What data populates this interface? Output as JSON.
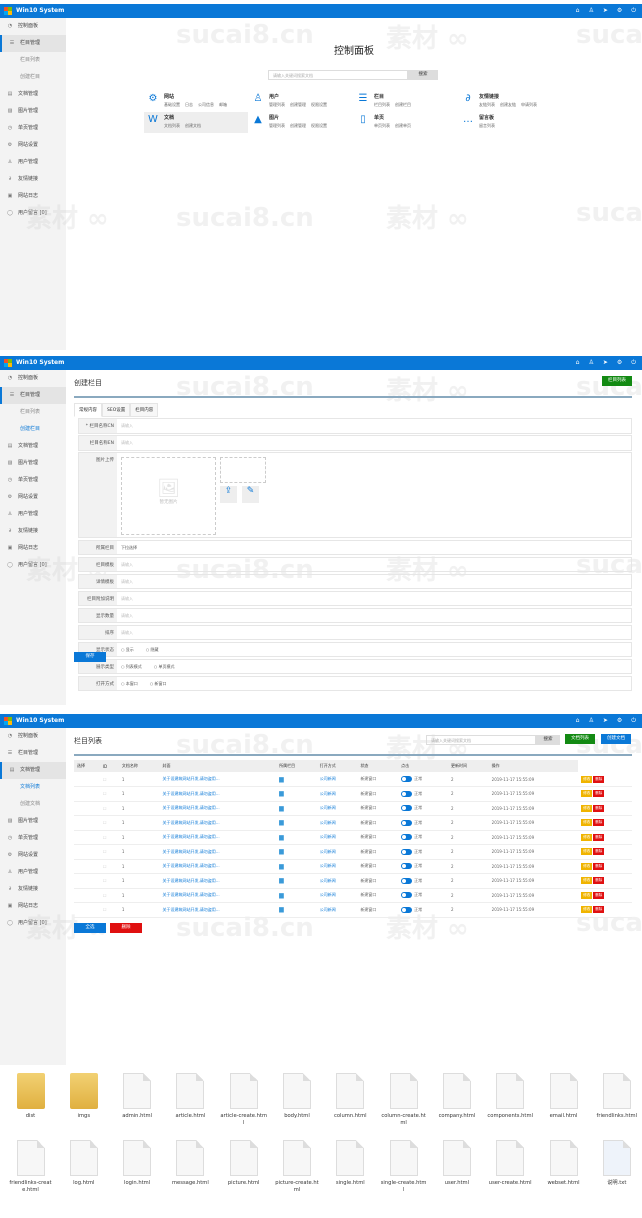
{
  "app": {
    "title": "Win10 System",
    "header_icons": [
      "home-icon",
      "user-icon",
      "send-icon",
      "gear-icon",
      "power-icon"
    ],
    "accent": "#0a78d7"
  },
  "sidebar": [
    {
      "label": "控制面板",
      "icon": "◔"
    },
    {
      "label": "栏目管理",
      "icon": "☰",
      "children": [
        "栏目列表",
        "创建栏目"
      ]
    },
    {
      "label": "文档管理",
      "icon": "▤",
      "children": [
        "文档列表",
        "创建文档"
      ]
    },
    {
      "label": "图片管理",
      "icon": "▨"
    },
    {
      "label": "单页管理",
      "icon": "◷"
    },
    {
      "label": "网站设置",
      "icon": "⚙"
    },
    {
      "label": "用户管理",
      "icon": "♙"
    },
    {
      "label": "友情链接",
      "icon": "∂"
    },
    {
      "label": "网站日志",
      "icon": "▣"
    },
    {
      "label": "用户留言 [0]",
      "icon": "◯"
    }
  ],
  "dashboard": {
    "title": "控制面板",
    "search_placeholder": "请输入关键词搜索文档",
    "search_button": "搜索",
    "cards": [
      {
        "title": "网站",
        "icon": "⚙",
        "links": [
          "基础设置",
          "日志",
          "公司信息",
          "邮箱"
        ]
      },
      {
        "title": "用户",
        "icon": "♙",
        "links": [
          "管理列表",
          "创建管理",
          "权限设置"
        ]
      },
      {
        "title": "栏目",
        "icon": "☰",
        "links": [
          "栏目列表",
          "创建栏目"
        ]
      },
      {
        "title": "友情链接",
        "icon": "∂",
        "links": [
          "友链列表",
          "创建友链",
          "申请列表"
        ]
      },
      {
        "title": "文档",
        "icon": "W",
        "links": [
          "文档列表",
          "创建文档"
        ]
      },
      {
        "title": "图片",
        "icon": "▲",
        "links": [
          "管理列表",
          "创建管理",
          "权限设置"
        ]
      },
      {
        "title": "单页",
        "icon": "▯",
        "links": [
          "单页列表",
          "创建单页"
        ]
      },
      {
        "title": "留言板",
        "icon": "…",
        "links": [
          "留言列表"
        ]
      }
    ]
  },
  "create_column": {
    "title": "创建栏目",
    "top_button": "栏目列表",
    "tabs": [
      "常规内容",
      "SEO设置",
      "栏目内容"
    ],
    "fields": [
      {
        "label": "* 栏目名称CN",
        "placeholder": "请输入"
      },
      {
        "label": "栏目名称EN",
        "placeholder": "请输入"
      },
      {
        "label": "图片上传",
        "placeholder": "暂无图片"
      },
      {
        "label": "所属栏目",
        "value": "下拉选择"
      },
      {
        "label": "栏目模板",
        "placeholder": "请输入"
      },
      {
        "label": "详情模板",
        "placeholder": "请输入"
      },
      {
        "label": "栏目附加说明",
        "placeholder": "请输入"
      },
      {
        "label": "显示数量",
        "placeholder": "请输入"
      },
      {
        "label": "排序",
        "placeholder": "请输入"
      },
      {
        "label": "显示状态",
        "options": [
          "显示",
          "隐藏"
        ]
      },
      {
        "label": "展示类型",
        "options": [
          "列表模式",
          "单页模式"
        ]
      },
      {
        "label": "打开方式",
        "options": [
          "本窗口",
          "新窗口"
        ]
      }
    ],
    "save_button": "保存"
  },
  "doc_list": {
    "title": "栏目列表",
    "search_placeholder": "请输入关键词搜索文档",
    "search_button": "搜索",
    "list_button": "文档列表",
    "create_button": "创建文档",
    "columns": [
      "选择",
      "ID",
      "文档名称",
      "封面",
      "所属栏目",
      "打开方式",
      "状态",
      "点击",
      "更新时间",
      "操作"
    ],
    "rows": [
      {
        "id": "1",
        "name": "关于设建筑网站开发,请勿盗用...",
        "category": "公司新闻",
        "open": "新建窗口",
        "status": "正常",
        "clicks": "2",
        "updated": "2019-11-17 15:55:09"
      },
      {
        "id": "1",
        "name": "关于设建筑网站开发,请勿盗用...",
        "category": "公司新闻",
        "open": "新建窗口",
        "status": "正常",
        "clicks": "2",
        "updated": "2019-11-17 15:55:09"
      },
      {
        "id": "1",
        "name": "关于设建筑网站开发,请勿盗用...",
        "category": "公司新闻",
        "open": "新建窗口",
        "status": "正常",
        "clicks": "2",
        "updated": "2019-11-17 15:55:09"
      },
      {
        "id": "1",
        "name": "关于设建筑网站开发,请勿盗用...",
        "category": "公司新闻",
        "open": "新建窗口",
        "status": "正常",
        "clicks": "2",
        "updated": "2019-11-17 15:55:09"
      },
      {
        "id": "1",
        "name": "关于设建筑网站开发,请勿盗用...",
        "category": "公司新闻",
        "open": "新建窗口",
        "status": "正常",
        "clicks": "2",
        "updated": "2019-11-17 15:55:09"
      },
      {
        "id": "1",
        "name": "关于设建筑网站开发,请勿盗用...",
        "category": "公司新闻",
        "open": "新建窗口",
        "status": "正常",
        "clicks": "2",
        "updated": "2019-11-17 15:55:09"
      },
      {
        "id": "1",
        "name": "关于设建筑网站开发,请勿盗用...",
        "category": "公司新闻",
        "open": "新建窗口",
        "status": "正常",
        "clicks": "2",
        "updated": "2019-11-17 15:55:09"
      },
      {
        "id": "1",
        "name": "关于设建筑网站开发,请勿盗用...",
        "category": "公司新闻",
        "open": "新建窗口",
        "status": "正常",
        "clicks": "2",
        "updated": "2019-11-17 15:55:09"
      },
      {
        "id": "1",
        "name": "关于设建筑网站开发,请勿盗用...",
        "category": "公司新闻",
        "open": "新建窗口",
        "status": "正常",
        "clicks": "2",
        "updated": "2019-11-17 15:55:09"
      },
      {
        "id": "1",
        "name": "关于设建筑网站开发,请勿盗用...",
        "category": "公司新闻",
        "open": "新建窗口",
        "status": "正常",
        "clicks": "2",
        "updated": "2019-11-17 15:55:09"
      }
    ],
    "edit_label": "修改",
    "delete_label": "删除",
    "select_all_button": "全选",
    "bulk_delete_button": "删除"
  },
  "files": [
    {
      "name": "dist",
      "type": "folder"
    },
    {
      "name": "imgs",
      "type": "folder"
    },
    {
      "name": "admin.html"
    },
    {
      "name": "article.html"
    },
    {
      "name": "article-create.html"
    },
    {
      "name": "body.html"
    },
    {
      "name": "column.html"
    },
    {
      "name": "column-create.html"
    },
    {
      "name": "company.html"
    },
    {
      "name": "components.html"
    },
    {
      "name": "email.html"
    },
    {
      "name": "friendlinks.html"
    },
    {
      "name": "friendlinks-create.html"
    },
    {
      "name": "log.html"
    },
    {
      "name": "login.html"
    },
    {
      "name": "message.html"
    },
    {
      "name": "picture.html"
    },
    {
      "name": "picture-create.html"
    },
    {
      "name": "single.html"
    },
    {
      "name": "single-create.html"
    },
    {
      "name": "user.html"
    },
    {
      "name": "user-create.html"
    },
    {
      "name": "webset.html"
    },
    {
      "name": "说明.txt",
      "type": "txt"
    }
  ],
  "watermarks": [
    "sucai8.cn",
    "素材"
  ]
}
